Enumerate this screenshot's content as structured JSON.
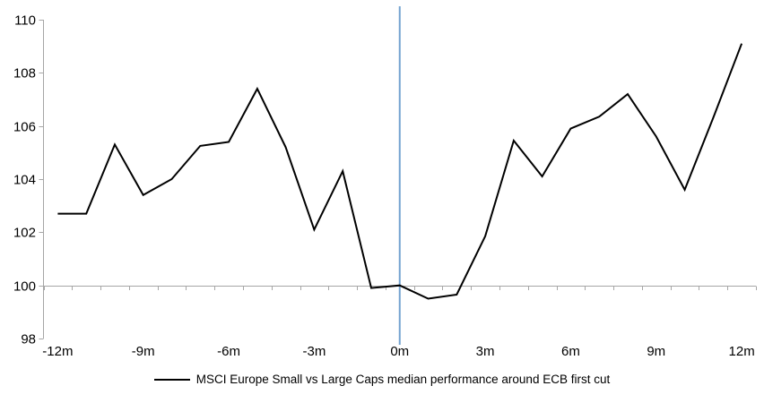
{
  "chart_data": {
    "type": "line",
    "title": "",
    "legend": "MSCI Europe Small vs Large Caps median performance around ECB first cut",
    "categories": [
      "-12m",
      "-11m",
      "-10m",
      "-9m",
      "-8m",
      "-7m",
      "-6m",
      "-5m",
      "-4m",
      "-3m",
      "-2m",
      "-1m",
      "0m",
      "1m",
      "2m",
      "3m",
      "4m",
      "5m",
      "6m",
      "7m",
      "8m",
      "9m",
      "10m",
      "11m",
      "12m"
    ],
    "series": [
      {
        "name": "MSCI Europe Small vs Large Caps median performance around ECB first cut",
        "color": "#000000",
        "values": [
          102.7,
          102.7,
          105.3,
          103.4,
          104.0,
          105.25,
          105.4,
          107.4,
          105.2,
          102.1,
          104.3,
          99.9,
          100.0,
          99.5,
          99.65,
          101.85,
          105.45,
          104.1,
          105.9,
          106.35,
          107.2,
          105.6,
          103.6,
          106.3,
          109.1
        ]
      }
    ],
    "ylim": [
      98,
      110
    ],
    "yticks": [
      110,
      108,
      106,
      104,
      102,
      100,
      98
    ],
    "xticks": [
      "-12m",
      "-9m",
      "-6m",
      "-3m",
      "0m",
      "3m",
      "6m",
      "9m",
      "12m"
    ],
    "xtick_every": 3,
    "x_axis_at_value": 100,
    "event_line": {
      "at_category": "0m",
      "color": "#74A3D0"
    },
    "grid": "off",
    "legend_position": "bottom",
    "axis_color": "#A6A6A6",
    "text_color": "#000000",
    "background": "#FFFFFF"
  }
}
